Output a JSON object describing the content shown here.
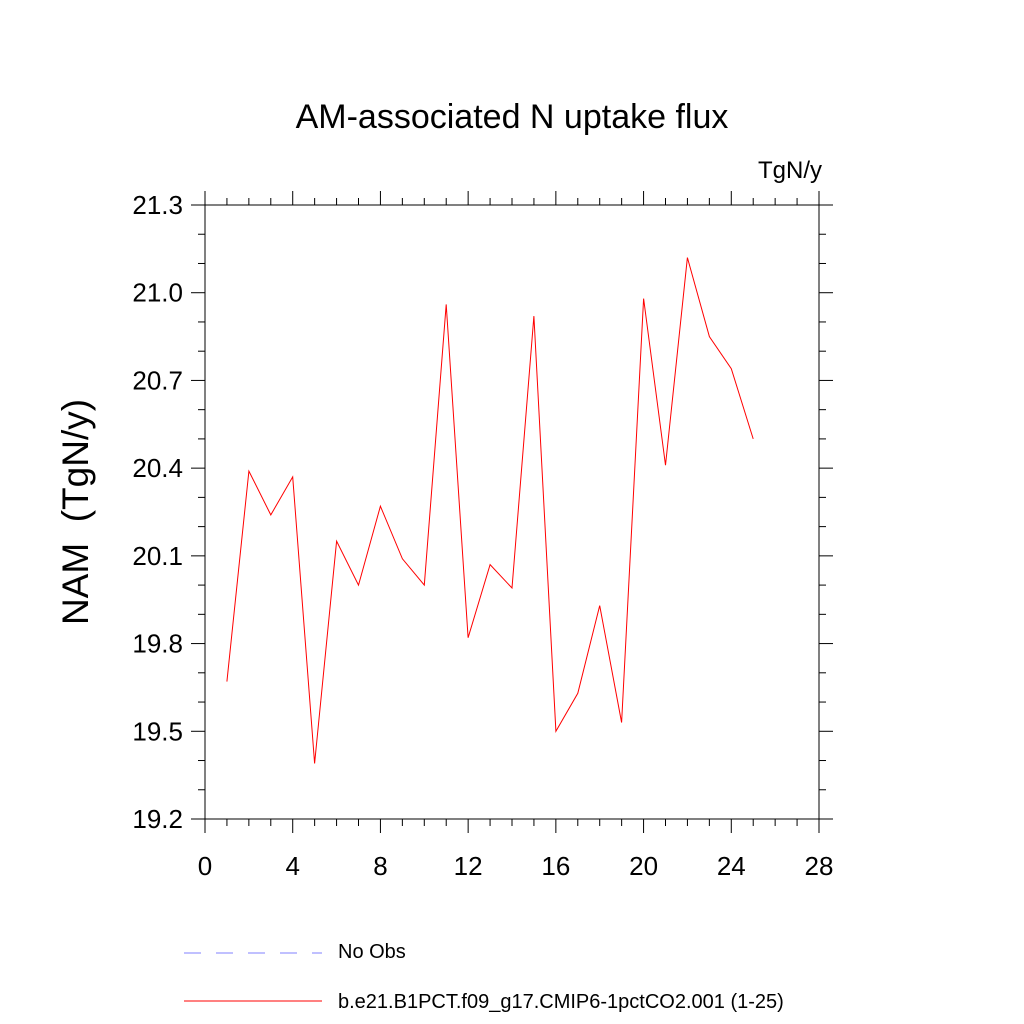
{
  "chart_data": {
    "type": "line",
    "title": "AM-associated N uptake flux",
    "units_label": "TgN/y",
    "xlabel": "",
    "ylabel": "NAM  (TgN/y)",
    "xlim": [
      0,
      28
    ],
    "ylim": [
      19.2,
      21.3
    ],
    "xticks": [
      0,
      4,
      8,
      12,
      16,
      20,
      24,
      28
    ],
    "xtick_labels": [
      "0",
      "4",
      "8",
      "12",
      "16",
      "20",
      "24",
      "28"
    ],
    "yticks": [
      19.2,
      19.5,
      19.8,
      20.1,
      20.4,
      20.7,
      21.0,
      21.3
    ],
    "ytick_labels": [
      "19.2",
      "19.5",
      "19.8",
      "20.1",
      "20.4",
      "20.7",
      "21.0",
      "21.3"
    ],
    "grid": false,
    "legend_position": "bottom",
    "series": [
      {
        "name": "b.e21.B1PCT.f09_g17.CMIP6-1pctCO2.001 (1-25)",
        "color": "#ff0000",
        "style": "solid",
        "x": [
          1,
          2,
          3,
          4,
          5,
          6,
          7,
          8,
          9,
          10,
          11,
          12,
          13,
          14,
          15,
          16,
          17,
          18,
          19,
          20,
          21,
          22,
          23,
          24,
          25
        ],
        "y": [
          19.67,
          20.39,
          20.24,
          20.37,
          19.39,
          20.15,
          20.0,
          20.27,
          20.09,
          20.0,
          20.96,
          19.82,
          20.07,
          19.99,
          20.92,
          19.5,
          19.63,
          19.93,
          19.53,
          20.98,
          20.41,
          21.12,
          20.85,
          20.74,
          20.5
        ]
      }
    ],
    "legend": [
      {
        "label": "No Obs",
        "color": "#8080ff",
        "style": "dashed"
      },
      {
        "label": "b.e21.B1PCT.f09_g17.CMIP6-1pctCO2.001 (1-25)",
        "color": "#ff0000",
        "style": "solid"
      }
    ]
  }
}
